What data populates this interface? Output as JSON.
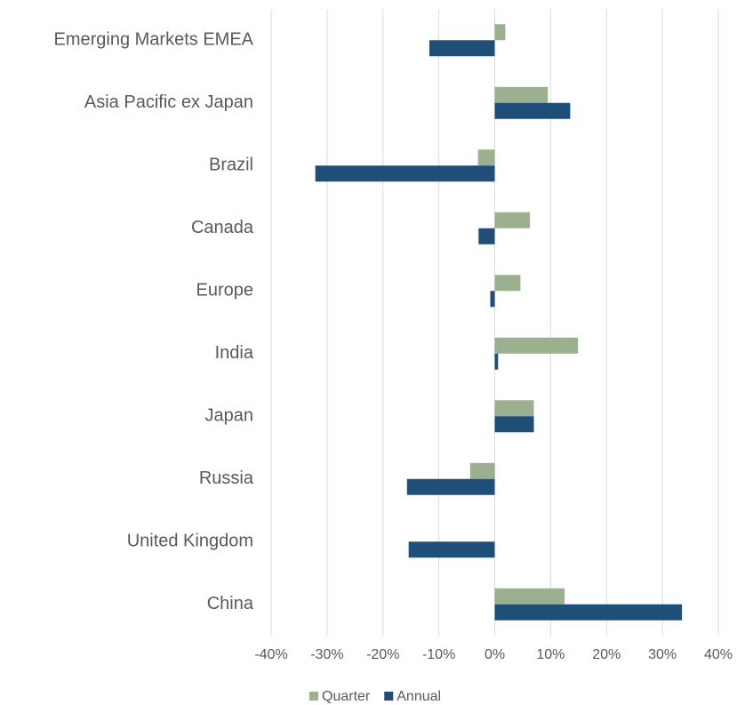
{
  "chart_data": {
    "type": "bar",
    "orientation": "horizontal",
    "categories": [
      "Emerging Markets EMEA",
      "Asia Pacific ex Japan",
      "Brazil",
      "Canada",
      "Europe",
      "India",
      "Japan",
      "Russia",
      "United Kingdom",
      "China"
    ],
    "series": [
      {
        "name": "Quarter",
        "color": "#9bb08f",
        "values": [
          1.9,
          9.5,
          -3.0,
          6.3,
          4.6,
          14.9,
          7.0,
          -4.4,
          0,
          12.5
        ]
      },
      {
        "name": "Annual",
        "color": "#1f4e79",
        "values": [
          -11.7,
          13.5,
          -32.1,
          -2.9,
          -0.8,
          0.6,
          7.0,
          -15.7,
          -15.4,
          33.5
        ]
      }
    ],
    "xlim": [
      -40,
      40
    ],
    "xticks": [
      {
        "value": -40,
        "label": "-40%"
      },
      {
        "value": -30,
        "label": "-30%"
      },
      {
        "value": -20,
        "label": "-20%"
      },
      {
        "value": -10,
        "label": "-10%"
      },
      {
        "value": 0,
        "label": "0%"
      },
      {
        "value": 10,
        "label": "10%"
      },
      {
        "value": 20,
        "label": "20%"
      },
      {
        "value": 30,
        "label": "30%"
      },
      {
        "value": 40,
        "label": "40%"
      }
    ],
    "grid": true,
    "legend": "bottom"
  }
}
